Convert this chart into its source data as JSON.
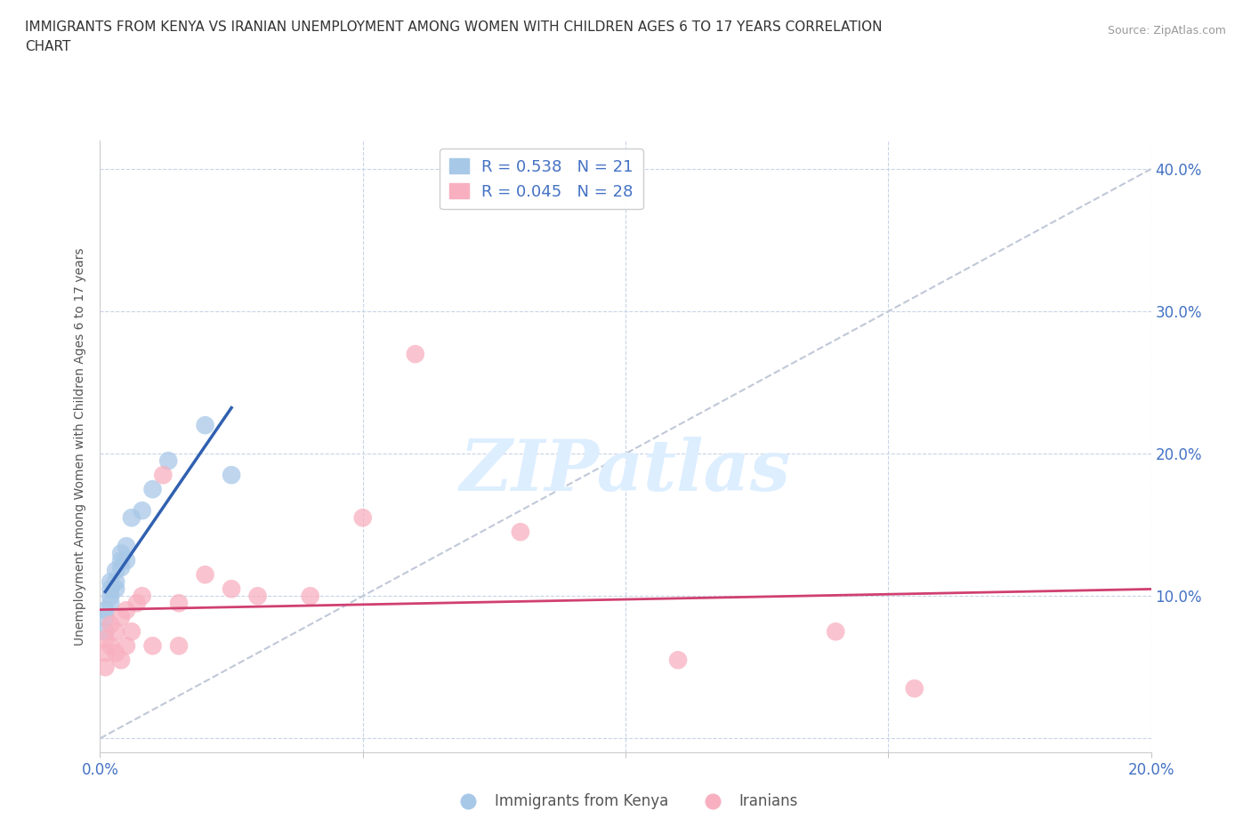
{
  "title_line1": "IMMIGRANTS FROM KENYA VS IRANIAN UNEMPLOYMENT AMONG WOMEN WITH CHILDREN AGES 6 TO 17 YEARS CORRELATION",
  "title_line2": "CHART",
  "source": "Source: ZipAtlas.com",
  "ylabel": "Unemployment Among Women with Children Ages 6 to 17 years",
  "xlim": [
    0.0,
    0.2
  ],
  "ylim": [
    -0.01,
    0.42
  ],
  "xticks": [
    0.0,
    0.05,
    0.1,
    0.15,
    0.2
  ],
  "yticks": [
    0.0,
    0.1,
    0.2,
    0.3,
    0.4
  ],
  "xtick_labels_left": [
    "0.0%",
    "",
    "",
    "",
    "20.0%"
  ],
  "ytick_labels_right": [
    "",
    "10.0%",
    "20.0%",
    "30.0%",
    "40.0%"
  ],
  "kenya_R": 0.538,
  "kenya_N": 21,
  "iran_R": 0.045,
  "iran_N": 28,
  "kenya_color": "#a8c8e8",
  "iran_color": "#f8b0c0",
  "kenya_line_color": "#3060b0",
  "iran_line_color": "#d04070",
  "ref_line_color": "#c0c8d8",
  "watermark_color": "#ddeeff",
  "background_color": "#ffffff",
  "grid_color": "#c8d4e8",
  "legend_border_color": "#cccccc",
  "tick_color": "#4472c4",
  "label_color": "#555555",
  "kenya_x": [
    0.001,
    0.001,
    0.001,
    0.002,
    0.002,
    0.002,
    0.002,
    0.003,
    0.003,
    0.003,
    0.004,
    0.004,
    0.004,
    0.005,
    0.005,
    0.006,
    0.008,
    0.01,
    0.013,
    0.02,
    0.025
  ],
  "kenya_y": [
    0.075,
    0.085,
    0.09,
    0.095,
    0.1,
    0.105,
    0.11,
    0.105,
    0.11,
    0.118,
    0.12,
    0.125,
    0.13,
    0.125,
    0.135,
    0.155,
    0.16,
    0.175,
    0.195,
    0.22,
    0.185
  ],
  "iran_x": [
    0.001,
    0.001,
    0.001,
    0.002,
    0.002,
    0.003,
    0.003,
    0.004,
    0.004,
    0.005,
    0.005,
    0.006,
    0.007,
    0.008,
    0.01,
    0.012,
    0.015,
    0.015,
    0.02,
    0.025,
    0.03,
    0.04,
    0.05,
    0.06,
    0.08,
    0.11,
    0.14,
    0.155
  ],
  "iran_y": [
    0.07,
    0.06,
    0.05,
    0.08,
    0.065,
    0.06,
    0.075,
    0.085,
    0.055,
    0.09,
    0.065,
    0.075,
    0.095,
    0.1,
    0.065,
    0.185,
    0.095,
    0.065,
    0.115,
    0.105,
    0.1,
    0.1,
    0.155,
    0.27,
    0.145,
    0.055,
    0.075,
    0.035
  ],
  "kenya_legend_label": "Immigrants from Kenya",
  "iran_legend_label": "Iranians"
}
